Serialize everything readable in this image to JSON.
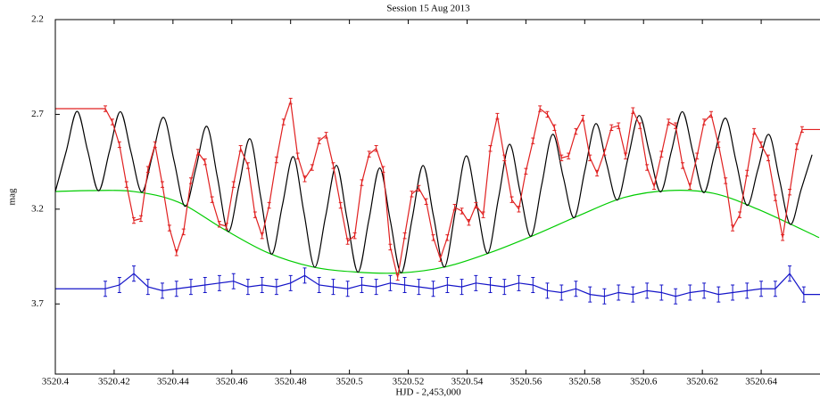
{
  "chart_data": {
    "type": "line",
    "title": "Session 15 Aug 2013",
    "x_label": "HJD - 2,453,000",
    "y_label": "mag",
    "xlim": [
      3520.4,
      3520.66
    ],
    "ylim": [
      2.2,
      4.07
    ],
    "invert_y": true,
    "xticks": [
      3520.4,
      3520.42,
      3520.44,
      3520.46,
      3520.48,
      3520.5,
      3520.52,
      3520.54,
      3520.56,
      3520.58,
      3520.6,
      3520.62,
      3520.64
    ],
    "yticks": [
      2.2,
      2.7,
      3.2,
      3.7
    ],
    "grid": false,
    "series": [
      {
        "color": "#00cc00",
        "smooth": true,
        "x": [
          3520.4,
          3520.4115,
          3520.4267,
          3520.4418,
          3520.457,
          3520.4721,
          3520.4873,
          3520.5024,
          3520.5176,
          3520.5327,
          3520.5479,
          3520.563,
          3520.5782,
          3520.5933,
          3520.6085,
          3520.6236,
          3520.6388,
          3520.6597
        ],
        "values": [
          3.107,
          3.102,
          3.107,
          3.163,
          3.303,
          3.429,
          3.504,
          3.532,
          3.536,
          3.504,
          3.429,
          3.336,
          3.233,
          3.139,
          3.102,
          3.116,
          3.2,
          3.35
        ]
      },
      {
        "color": "#000000",
        "smooth": true,
        "x": [
          3520.4,
          3520.4037,
          3520.4074,
          3520.411,
          3520.4147,
          3520.4184,
          3520.4221,
          3520.4257,
          3520.4294,
          3520.4331,
          3520.4368,
          3520.4404,
          3520.4441,
          3520.4478,
          3520.4515,
          3520.4551,
          3520.4588,
          3520.4625,
          3520.4662,
          3520.4698,
          3520.4735,
          3520.4772,
          3520.4809,
          3520.4845,
          3520.4882,
          3520.4919,
          3520.4956,
          3520.4992,
          3520.5029,
          3520.5066,
          3520.5103,
          3520.5139,
          3520.5176,
          3520.5213,
          3520.525,
          3520.5286,
          3520.5323,
          3520.536,
          3520.5397,
          3520.5433,
          3520.547,
          3520.5507,
          3520.5544,
          3520.558,
          3520.5617,
          3520.5654,
          3520.5691,
          3520.5727,
          3520.5764,
          3520.5801,
          3520.5838,
          3520.5874,
          3520.5911,
          3520.5948,
          3520.5985,
          3520.6021,
          3520.6058,
          3520.6095,
          3520.6132,
          3520.6168,
          3520.6205,
          3520.6242,
          3520.6279,
          3520.6315,
          3520.6352,
          3520.6389,
          3520.6426,
          3520.6462,
          3520.6499,
          3520.6536,
          3520.6573
        ],
        "values": [
          3.107,
          2.895,
          2.684,
          2.892,
          3.103,
          2.895,
          2.686,
          2.897,
          3.11,
          2.912,
          2.716,
          2.947,
          3.185,
          2.984,
          2.763,
          3.031,
          3.318,
          3.073,
          2.829,
          3.134,
          3.437,
          3.18,
          2.923,
          3.215,
          3.506,
          3.238,
          2.969,
          3.251,
          3.532,
          3.258,
          2.983,
          3.26,
          3.536,
          3.253,
          2.97,
          3.238,
          3.505,
          3.212,
          2.919,
          3.176,
          3.433,
          3.141,
          2.858,
          3.106,
          3.343,
          3.07,
          2.805,
          3.03,
          3.245,
          2.992,
          2.749,
          2.957,
          3.152,
          2.925,
          2.706,
          2.907,
          3.109,
          2.893,
          2.686,
          2.9,
          3.113,
          2.907,
          2.72,
          2.95,
          3.18,
          2.99,
          2.806,
          3.042,
          3.28,
          3.096,
          2.913
        ]
      },
      {
        "color": "#e02020",
        "error": 0.015,
        "extend_ends": true,
        "x": [
          3520.417,
          3520.4194,
          3520.4218,
          3520.4242,
          3520.4267,
          3520.4291,
          3520.4315,
          3520.4339,
          3520.4364,
          3520.4388,
          3520.4412,
          3520.4436,
          3520.4461,
          3520.4485,
          3520.4509,
          3520.4533,
          3520.4558,
          3520.4582,
          3520.4606,
          3520.463,
          3520.4655,
          3520.4679,
          3520.4703,
          3520.4727,
          3520.4752,
          3520.4776,
          3520.48,
          3520.4824,
          3520.4848,
          3520.4873,
          3520.4897,
          3520.4921,
          3520.4945,
          3520.497,
          3520.4994,
          3520.5018,
          3520.5042,
          3520.5067,
          3520.5091,
          3520.5115,
          3520.5139,
          3520.5164,
          3520.5188,
          3520.5212,
          3520.5236,
          3520.5261,
          3520.5285,
          3520.5309,
          3520.5333,
          3520.5358,
          3520.5382,
          3520.5406,
          3520.543,
          3520.5455,
          3520.5479,
          3520.5503,
          3520.5527,
          3520.5552,
          3520.5576,
          3520.56,
          3520.5624,
          3520.5648,
          3520.5673,
          3520.5697,
          3520.5721,
          3520.5745,
          3520.577,
          3520.5794,
          3520.5818,
          3520.5842,
          3520.5867,
          3520.5891,
          3520.5915,
          3520.5939,
          3520.5964,
          3520.5988,
          3520.6012,
          3520.6036,
          3520.6061,
          3520.6085,
          3520.6109,
          3520.6133,
          3520.6158,
          3520.6182,
          3520.6206,
          3520.623,
          3520.6255,
          3520.6279,
          3520.6303,
          3520.6327,
          3520.6352,
          3520.6376,
          3520.64,
          3520.6424,
          3520.6448,
          3520.6473,
          3520.6497,
          3520.6521,
          3520.6539
        ],
        "values": [
          2.67,
          2.74,
          2.86,
          3.07,
          3.26,
          3.25,
          2.99,
          2.86,
          3.07,
          3.3,
          3.43,
          3.32,
          3.05,
          2.9,
          2.95,
          3.15,
          3.28,
          3.29,
          3.07,
          2.88,
          2.97,
          3.23,
          3.34,
          3.18,
          2.94,
          2.74,
          2.63,
          2.92,
          3.04,
          2.98,
          2.84,
          2.81,
          2.97,
          3.18,
          3.37,
          3.34,
          3.06,
          2.91,
          2.88,
          2.99,
          3.4,
          3.56,
          3.34,
          3.12,
          3.09,
          3.16,
          3.35,
          3.46,
          3.35,
          3.19,
          3.21,
          3.27,
          3.18,
          3.23,
          2.88,
          2.71,
          2.93,
          3.15,
          3.2,
          3.0,
          2.84,
          2.67,
          2.7,
          2.77,
          2.93,
          2.92,
          2.79,
          2.72,
          2.93,
          3.01,
          2.9,
          2.77,
          2.76,
          2.92,
          2.68,
          2.76,
          2.98,
          3.08,
          2.91,
          2.74,
          2.76,
          2.97,
          3.08,
          2.92,
          2.74,
          2.7,
          2.86,
          3.05,
          3.3,
          3.23,
          3.01,
          2.79,
          2.86,
          2.93,
          3.14,
          3.35,
          3.11,
          2.87,
          2.78
        ]
      },
      {
        "color": "#1414c8",
        "error": 0.04,
        "extend_ends": true,
        "x": [
          3520.417,
          3520.4218,
          3520.4267,
          3520.4315,
          3520.4364,
          3520.4412,
          3520.4461,
          3520.4509,
          3520.4558,
          3520.4606,
          3520.4655,
          3520.4703,
          3520.4752,
          3520.48,
          3520.4848,
          3520.4897,
          3520.4945,
          3520.4994,
          3520.5042,
          3520.5091,
          3520.5139,
          3520.5188,
          3520.5236,
          3520.5285,
          3520.5333,
          3520.5382,
          3520.543,
          3520.5479,
          3520.5527,
          3520.5576,
          3520.5624,
          3520.5673,
          3520.5721,
          3520.577,
          3520.5818,
          3520.5867,
          3520.5915,
          3520.5964,
          3520.6012,
          3520.6061,
          3520.6109,
          3520.6158,
          3520.6206,
          3520.6255,
          3520.6303,
          3520.6352,
          3520.64,
          3520.6448,
          3520.6497,
          3520.6545
        ],
        "values": [
          3.62,
          3.6,
          3.54,
          3.61,
          3.63,
          3.62,
          3.61,
          3.6,
          3.59,
          3.58,
          3.61,
          3.6,
          3.61,
          3.59,
          3.55,
          3.6,
          3.61,
          3.62,
          3.6,
          3.61,
          3.59,
          3.6,
          3.61,
          3.62,
          3.6,
          3.61,
          3.59,
          3.6,
          3.61,
          3.59,
          3.6,
          3.63,
          3.64,
          3.62,
          3.65,
          3.66,
          3.64,
          3.65,
          3.63,
          3.64,
          3.66,
          3.64,
          3.63,
          3.65,
          3.64,
          3.63,
          3.62,
          3.62,
          3.54,
          3.65
        ]
      }
    ]
  }
}
